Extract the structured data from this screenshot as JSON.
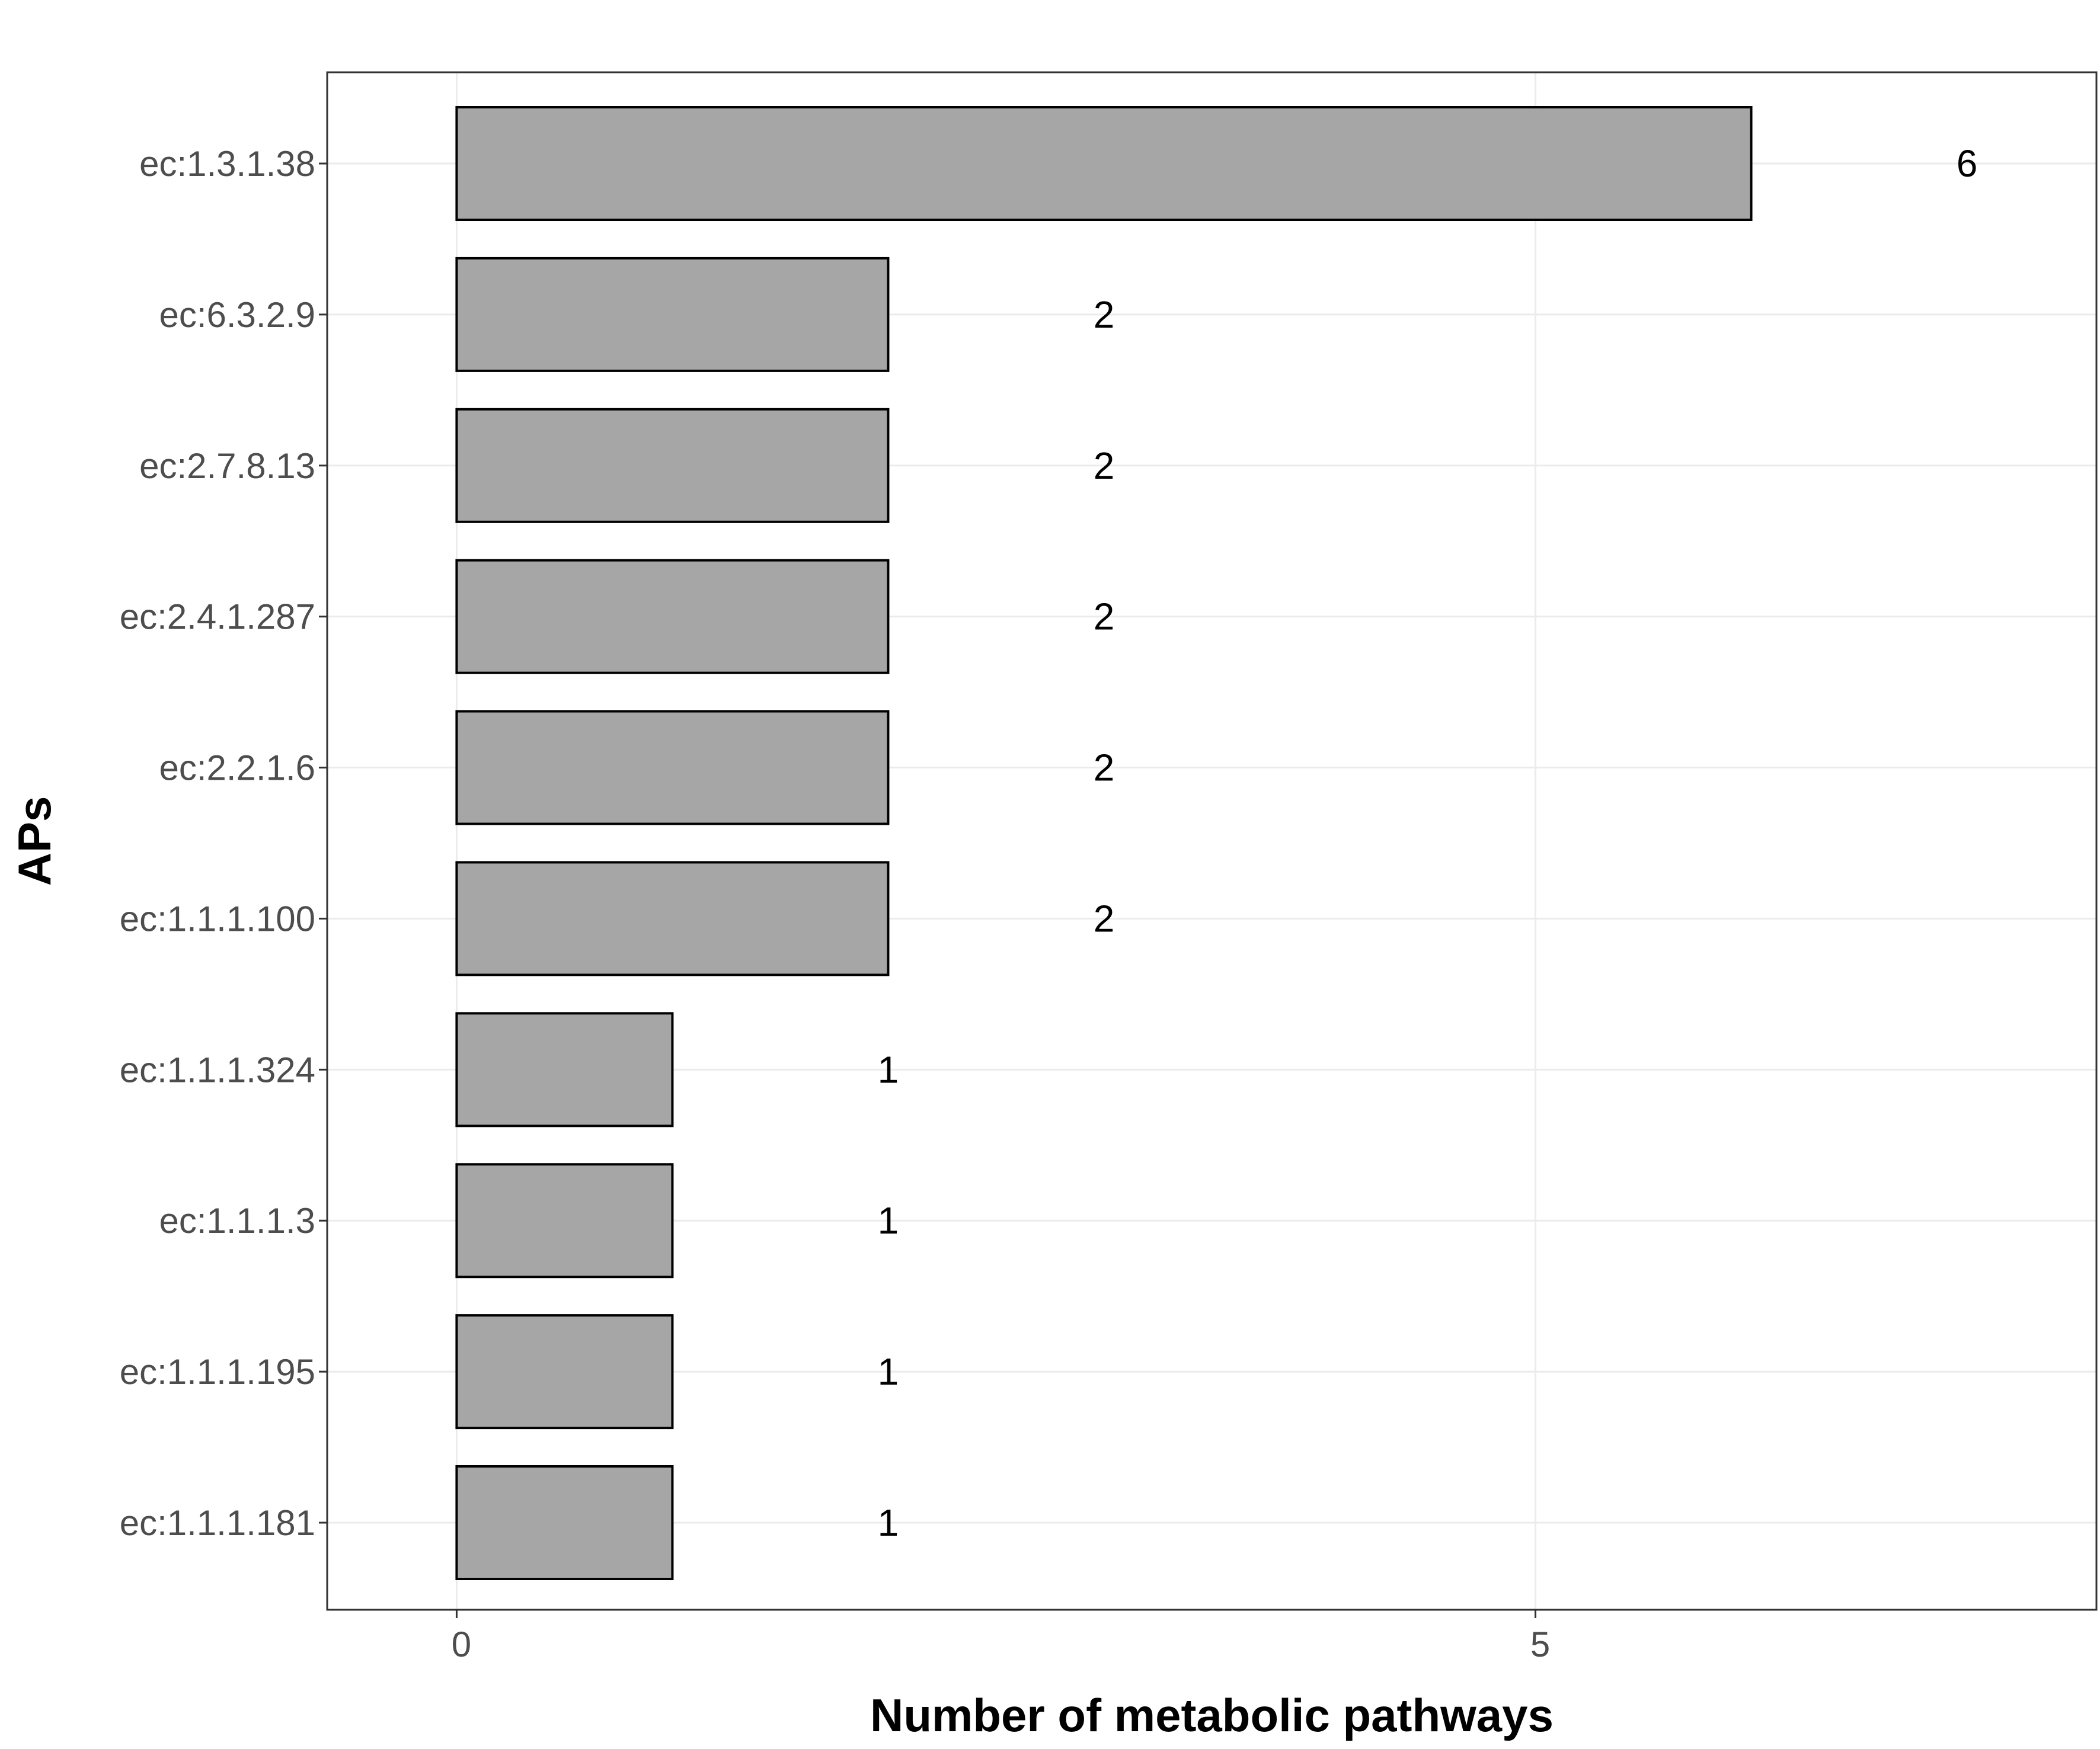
{
  "chart_data": {
    "type": "bar",
    "orientation": "horizontal",
    "title": "",
    "xlabel": "Number of metabolic pathways",
    "ylabel": "APs",
    "categories": [
      "ec:1.3.1.38",
      "ec:6.3.2.9",
      "ec:2.7.8.13",
      "ec:2.4.1.287",
      "ec:2.2.1.6",
      "ec:1.1.1.100",
      "ec:1.1.1.324",
      "ec:1.1.1.3",
      "ec:1.1.1.195",
      "ec:1.1.1.181"
    ],
    "values": [
      6,
      2,
      2,
      2,
      2,
      2,
      1,
      1,
      1,
      1
    ],
    "data_labels": [
      "6",
      "2",
      "2",
      "2",
      "2",
      "2",
      "1",
      "1",
      "1",
      "1"
    ],
    "xlim": [
      -0.6,
      7.6
    ],
    "xticks": [
      0,
      5
    ],
    "xtick_labels": [
      "0",
      "5"
    ],
    "grid": true,
    "legend": "none",
    "colors": {
      "bar_fill": "#a6a6a6",
      "bar_stroke": "#000000",
      "grid": "#ebebeb",
      "panel_border": "#333333",
      "tick_text": "#4d4d4d",
      "label_text": "#000000"
    }
  }
}
